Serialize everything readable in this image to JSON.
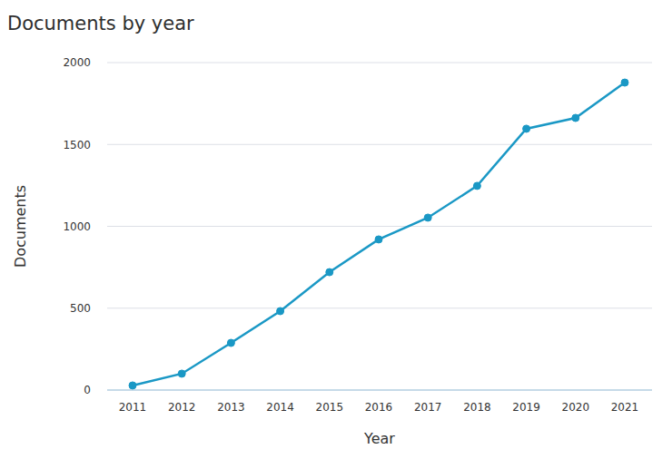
{
  "chart_data": {
    "type": "line",
    "title": "Documents by year",
    "x_label": "Year",
    "y_label": "Documents",
    "categories": [
      "2011",
      "2012",
      "2013",
      "2014",
      "2015",
      "2016",
      "2017",
      "2018",
      "2019",
      "2020",
      "2021"
    ],
    "values": [
      28,
      100,
      288,
      482,
      720,
      920,
      1053,
      1247,
      1596,
      1662,
      1878
    ],
    "color": "#1a98c5",
    "marker": "circle",
    "ylim": [
      0,
      2000
    ],
    "yticks": [
      0,
      500,
      1000,
      1500,
      2000
    ],
    "grid": true
  }
}
